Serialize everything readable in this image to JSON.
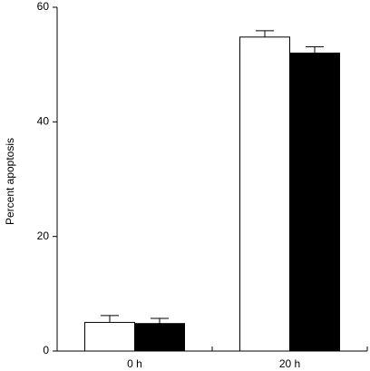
{
  "chart_data": {
    "type": "bar",
    "categories": [
      "0 h",
      "20 h"
    ],
    "series": [
      {
        "color": "#ffffff",
        "values": [
          5.0,
          54.8
        ],
        "errors": [
          1.2,
          1.1
        ]
      },
      {
        "color": "#000000",
        "values": [
          4.8,
          52.0
        ],
        "errors": [
          0.9,
          1.1
        ]
      }
    ],
    "y_label": "Percent apoptosis",
    "ylim": [
      0,
      60
    ],
    "yticks": [
      0,
      20,
      40,
      60
    ]
  }
}
